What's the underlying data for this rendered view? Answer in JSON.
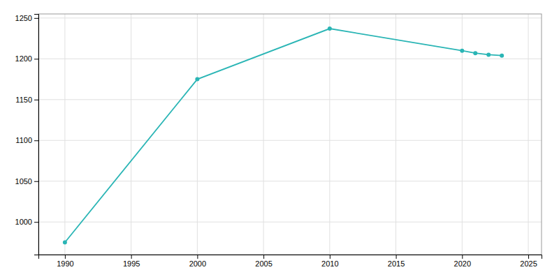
{
  "chart_data": {
    "type": "line",
    "x": [
      1990,
      2000,
      2010,
      2020,
      2021,
      2022,
      2023
    ],
    "values": [
      975,
      1175,
      1237,
      1210,
      1207,
      1205,
      1204
    ],
    "color": "#2ab5b5",
    "marker": "circle",
    "xlim": [
      1988,
      2026
    ],
    "ylim": [
      960,
      1255
    ],
    "xticks": [
      1990,
      1995,
      2000,
      2005,
      2010,
      2015,
      2020,
      2025
    ],
    "yticks": [
      1000,
      1050,
      1100,
      1150,
      1200,
      1250
    ],
    "grid": true
  }
}
